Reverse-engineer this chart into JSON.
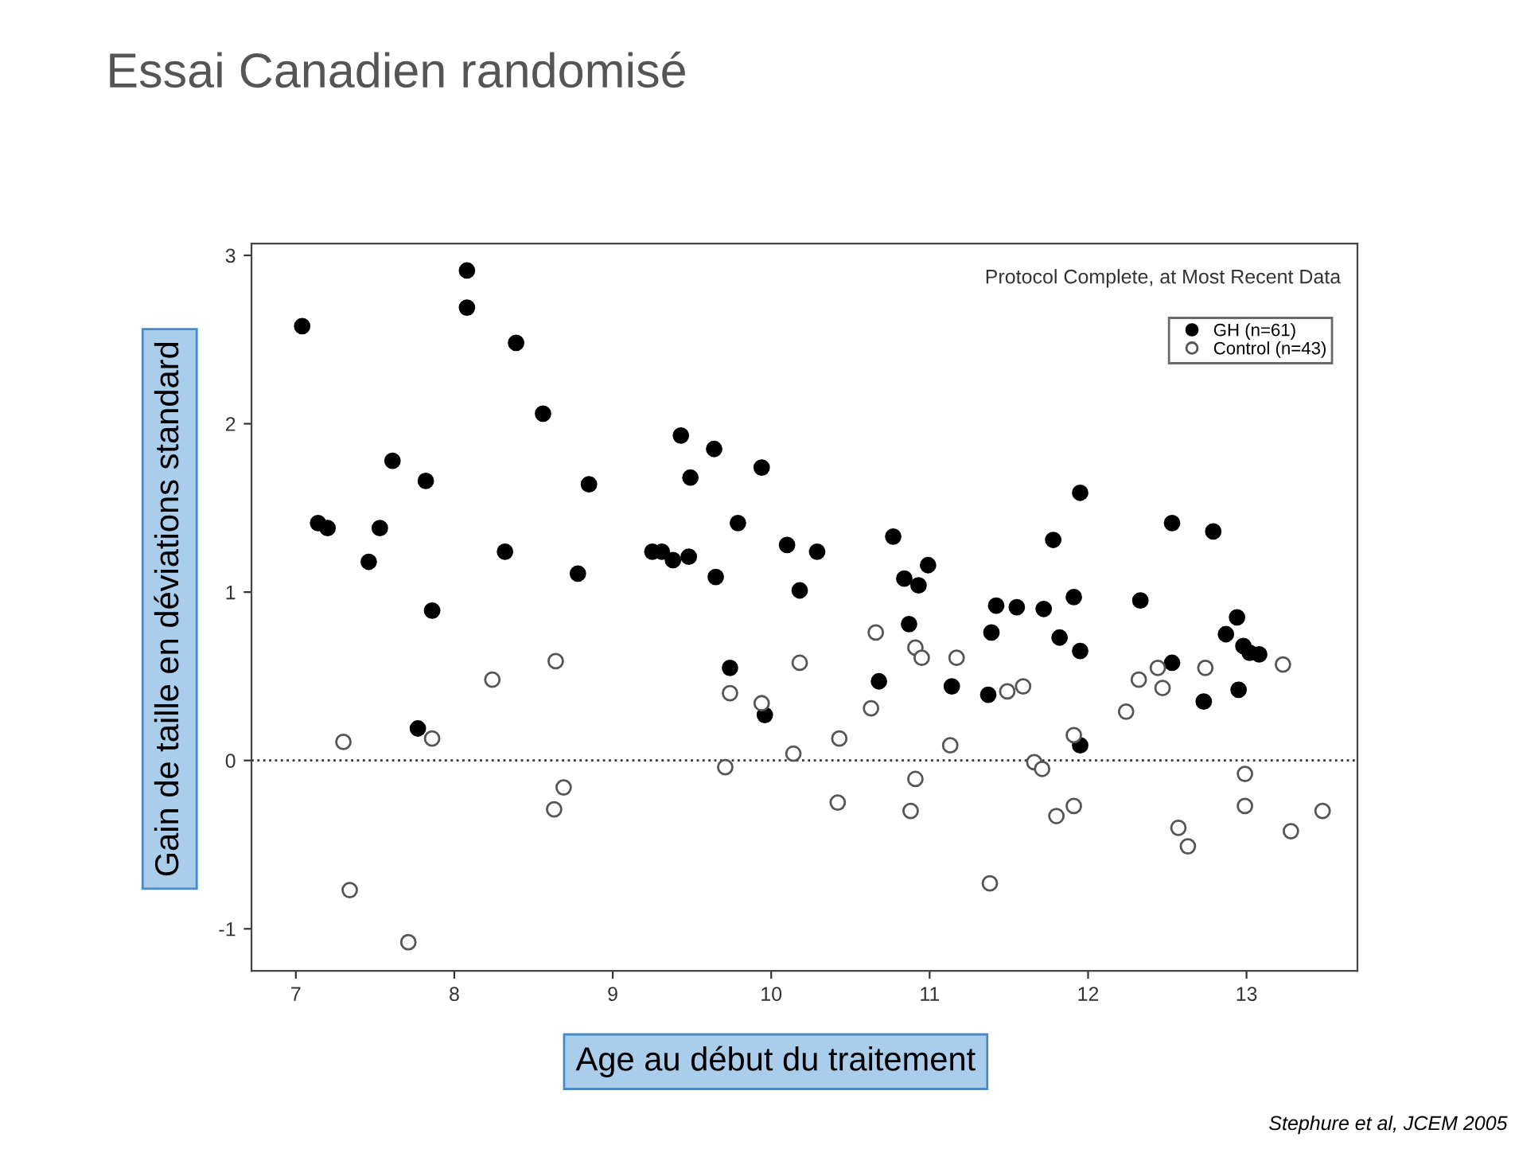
{
  "chart_data": {
    "type": "scatter",
    "title": "Essai Canadien randomisé",
    "subtitle": "Protocol Complete, at Most Recent Data",
    "xlabel": "Age au début du traitement",
    "ylabel": "Gain de taille en déviations standard",
    "annotations": [
      "Stephure et al, JCEM 2005"
    ],
    "xlim": [
      6.72,
      13.7
    ],
    "ylim": [
      -1.25,
      3.07
    ],
    "xticks": [
      7,
      8,
      9,
      10,
      11,
      12,
      13
    ],
    "yticks": [
      -1,
      0,
      1,
      2,
      3
    ],
    "legend": "top right",
    "marker": "circle",
    "grid": false,
    "ref_lines": [
      {
        "axis": "y",
        "value": 0,
        "color": "#333333",
        "line_style": "dotted"
      }
    ],
    "series": [
      {
        "name": "GH (n=61)",
        "color": "#000000",
        "x": [
          7.04,
          7.14,
          7.2,
          7.46,
          7.53,
          7.61,
          7.82,
          7.86,
          7.77,
          8.08,
          8.08,
          8.39,
          8.32,
          8.56,
          8.85,
          8.78,
          9.43,
          9.64,
          9.49,
          9.94,
          9.79,
          9.25,
          9.31,
          9.38,
          9.48,
          9.65,
          10.1,
          10.29,
          10.18,
          9.74,
          9.96,
          10.77,
          10.84,
          10.93,
          10.99,
          10.87,
          10.68,
          11.14,
          11.42,
          11.55,
          11.39,
          11.37,
          11.72,
          11.95,
          11.78,
          11.91,
          11.82,
          11.95,
          11.95,
          12.33,
          12.53,
          12.79,
          12.53,
          12.73,
          12.94,
          12.87,
          12.98,
          13.02,
          13.08,
          12.95
        ],
        "values": [
          2.58,
          1.41,
          1.38,
          1.18,
          1.38,
          1.78,
          1.66,
          0.89,
          0.19,
          2.91,
          2.69,
          2.48,
          1.24,
          2.06,
          1.64,
          1.11,
          1.93,
          1.85,
          1.68,
          1.74,
          1.41,
          1.24,
          1.24,
          1.19,
          1.21,
          1.09,
          1.28,
          1.24,
          1.01,
          0.55,
          0.27,
          1.33,
          1.08,
          1.04,
          1.16,
          0.81,
          0.47,
          0.44,
          0.92,
          0.91,
          0.76,
          0.39,
          0.9,
          1.59,
          1.31,
          0.97,
          0.73,
          0.65,
          0.09,
          0.95,
          1.41,
          1.36,
          0.58,
          0.35,
          0.85,
          0.75,
          0.68,
          0.64,
          0.63,
          0.42
        ]
      },
      {
        "name": "Control (n=43)",
        "color": "#555555",
        "x": [
          7.3,
          7.34,
          7.71,
          7.86,
          8.24,
          8.64,
          8.69,
          8.63,
          9.74,
          9.71,
          9.94,
          10.14,
          10.18,
          10.43,
          10.42,
          10.66,
          10.63,
          10.91,
          10.95,
          10.91,
          10.88,
          11.17,
          11.13,
          11.38,
          11.49,
          11.59,
          11.66,
          11.71,
          11.8,
          11.91,
          11.91,
          12.24,
          12.32,
          12.44,
          12.47,
          12.57,
          12.63,
          12.74,
          12.99,
          12.99,
          13.23,
          13.28,
          13.48
        ],
        "values": [
          0.11,
          -0.77,
          -1.08,
          0.13,
          0.48,
          0.59,
          -0.16,
          -0.29,
          0.4,
          -0.04,
          0.34,
          0.04,
          0.58,
          0.13,
          -0.25,
          0.76,
          0.31,
          0.67,
          0.61,
          -0.11,
          -0.3,
          0.61,
          0.09,
          -0.73,
          0.41,
          0.44,
          -0.01,
          -0.05,
          -0.33,
          -0.27,
          0.15,
          0.29,
          0.48,
          0.55,
          0.43,
          -0.4,
          -0.51,
          0.55,
          -0.08,
          -0.27,
          0.57,
          -0.42,
          -0.3
        ]
      }
    ]
  }
}
